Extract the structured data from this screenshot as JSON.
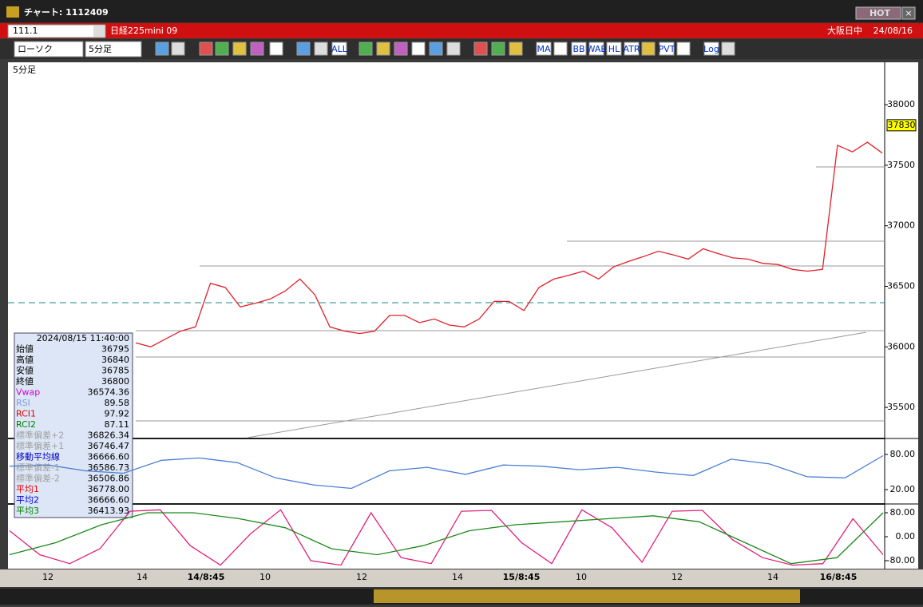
{
  "window": {
    "title": "チャート: 1112409",
    "hot": "HOT"
  },
  "header": {
    "code": "111.1",
    "instrument": "日経225mini 09",
    "market": "大阪日中",
    "date": "24/08/16"
  },
  "toolbar": {
    "chart_type": "ローソク",
    "interval": "5分足",
    "buttons": [
      "ALL",
      "MA",
      "BB",
      "WAE",
      "HL",
      "ATR",
      "PVT",
      "Log"
    ]
  },
  "chart_data": [
    {
      "type": "line",
      "title": "5分足",
      "x_labels": [
        "12",
        "14",
        "14/8:45",
        "10",
        "12",
        "14",
        "15/8:45",
        "10",
        "12",
        "14",
        "16/8:45"
      ],
      "ylim": [
        35250,
        38350
      ],
      "yticks": [
        35500,
        36000,
        36500,
        37000,
        37500,
        38000
      ],
      "series": [
        {
          "color": "#e0202a",
          "values": [
            36033,
            36000,
            36065,
            36130,
            36165,
            36525,
            36490,
            36330,
            36360,
            36395,
            36460,
            36560,
            36430,
            36165,
            36130,
            36110,
            36130,
            36260,
            36260,
            36200,
            36230,
            36180,
            36165,
            36230,
            36375,
            36375,
            36300,
            36490,
            36560,
            36590,
            36625,
            36560,
            36660,
            36705,
            36745,
            36790,
            36760,
            36725,
            36810,
            36770,
            36735,
            36725,
            36690,
            36680,
            36640,
            36625,
            36640,
            37665,
            37610,
            37690,
            37600
          ]
        }
      ],
      "reference_line": 36365,
      "last_price": 37830
    },
    {
      "type": "line",
      "ylim": [
        -3.2,
        105.9
      ],
      "yticks": [
        {
          "value": 20,
          "label": "20.00"
        },
        {
          "value": 80,
          "label": "80.00"
        }
      ],
      "series": [
        {
          "color": "#4a7fd4",
          "values": [
            60,
            62,
            52,
            48,
            70,
            74,
            66,
            40,
            28,
            22,
            52,
            58,
            46,
            62,
            60,
            54,
            58,
            50,
            44,
            72,
            64,
            42,
            40,
            78
          ]
        }
      ]
    },
    {
      "type": "line",
      "ylim": [
        -106.7,
        106.7
      ],
      "yticks": [
        {
          "value": -80,
          "label": "-80.00"
        },
        {
          "value": 0,
          "label": "0.00"
        },
        {
          "value": 80,
          "label": "80.00"
        }
      ],
      "series": [
        {
          "color": "#e0207a",
          "values": [
            20,
            -60,
            -90,
            -40,
            85,
            90,
            -30,
            -95,
            10,
            90,
            -80,
            -95,
            80,
            -70,
            -90,
            85,
            88,
            -20,
            -90,
            90,
            30,
            -85,
            85,
            88,
            -10,
            -70,
            -95,
            -90,
            60,
            -60
          ]
        },
        {
          "color": "#1a8a1a",
          "values": [
            -60,
            -20,
            40,
            80,
            80,
            60,
            30,
            -40,
            -60,
            -30,
            20,
            40,
            50,
            60,
            70,
            50,
            -20,
            -90,
            -70,
            80
          ]
        }
      ]
    }
  ],
  "info_panel": {
    "datetime": "2024/08/15 11:40:00",
    "rows": [
      {
        "label": "始値",
        "value": "36795",
        "color": "#000000"
      },
      {
        "label": "高値",
        "value": "36840",
        "color": "#000000"
      },
      {
        "label": "安値",
        "value": "36785",
        "color": "#000000"
      },
      {
        "label": "終値",
        "value": "36800",
        "color": "#000000"
      },
      {
        "label": "Vwap",
        "value": "36574.36",
        "color": "#d000d0"
      },
      {
        "label": "RSI",
        "value": "89.58",
        "color": "#7f9be0"
      },
      {
        "label": "RCI1",
        "value": "97.92",
        "color": "#e00000"
      },
      {
        "label": "RCI2",
        "value": "87.11",
        "color": "#008000"
      },
      {
        "label": "標準偏差+2",
        "value": "36826.34",
        "color": "#a0a0a0"
      },
      {
        "label": "標準偏差+1",
        "value": "36746.47",
        "color": "#a0a0a0"
      },
      {
        "label": "移動平均線",
        "value": "36666.60",
        "color": "#0000c0"
      },
      {
        "label": "標準偏差-1",
        "value": "36586.73",
        "color": "#a0a0a0"
      },
      {
        "label": "標準偏差-2",
        "value": "36506.86",
        "color": "#a0a0a0"
      },
      {
        "label": "平均1",
        "value": "36778.00",
        "color": "#e00000"
      },
      {
        "label": "平均2",
        "value": "36666.60",
        "color": "#0000e0"
      },
      {
        "label": "平均3",
        "value": "36413.93",
        "color": "#008000"
      }
    ]
  }
}
